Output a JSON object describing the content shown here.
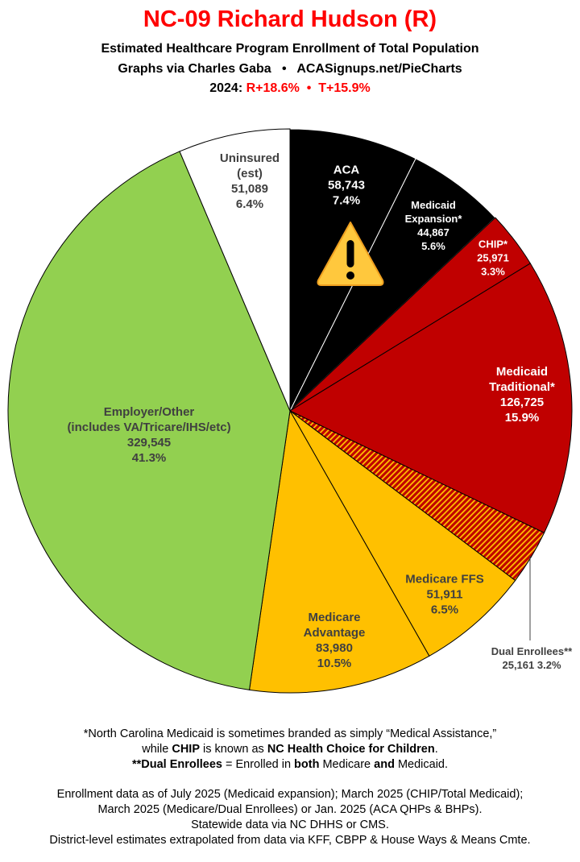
{
  "header": {
    "title": "NC-09 Richard Hudson (R)",
    "subtitle": "Estimated Healthcare Program Enrollment of Total Population",
    "credit": "Graphs via Charles Gaba   •   ACASignups.net/PieCharts",
    "margin_prefix": "2024: ",
    "margin_values": "R+18.6%  •  T+15.9%"
  },
  "chart_data": {
    "type": "pie",
    "start": "12 o'clock, clockwise",
    "slices": [
      {
        "name": "ACA",
        "lines": [
          "ACA"
        ],
        "value": 58743,
        "value_label": "58,743",
        "percent": 7.4,
        "percent_label": "7.4%",
        "color": "#000000",
        "text_color": "#ffffff"
      },
      {
        "name": "Medicaid Expansion*",
        "lines": [
          "Medicaid",
          "Expansion*"
        ],
        "value": 44867,
        "value_label": "44,867",
        "percent": 5.6,
        "percent_label": "5.6%",
        "color": "#000000",
        "text_color": "#ffffff"
      },
      {
        "name": "CHIP*",
        "lines": [
          "CHIP*"
        ],
        "value": 25971,
        "value_label": "25,971",
        "percent": 3.3,
        "percent_label": "3.3%",
        "color": "#c00000",
        "text_color": "#ffffff"
      },
      {
        "name": "Medicaid Traditional*",
        "lines": [
          "Medicaid",
          "Traditional*"
        ],
        "value": 126725,
        "value_label": "126,725",
        "percent": 15.9,
        "percent_label": "15.9%",
        "color": "#c00000",
        "text_color": "#ffffff"
      },
      {
        "name": "Dual Enrollees**",
        "lines": [
          "Dual Enrollees**"
        ],
        "value": 25161,
        "value_label": "25,161",
        "percent": 3.2,
        "percent_label": "3.2%",
        "color": "#c00000",
        "pattern": "hatched",
        "hatch_color": "#ffc000",
        "text_color": "#404040"
      },
      {
        "name": "Medicare FFS",
        "lines": [
          "Medicare FFS"
        ],
        "value": 51911,
        "value_label": "51,911",
        "percent": 6.5,
        "percent_label": "6.5%",
        "color": "#ffc000",
        "text_color": "#404040"
      },
      {
        "name": "Medicare Advantage",
        "lines": [
          "Medicare",
          "Advantage"
        ],
        "value": 83980,
        "value_label": "83,980",
        "percent": 10.5,
        "percent_label": "10.5%",
        "color": "#ffc000",
        "text_color": "#404040"
      },
      {
        "name": "Employer/Other",
        "lines": [
          "Employer/Other",
          "(includes VA/Tricare/IHS/etc)"
        ],
        "value": 329545,
        "value_label": "329,545",
        "percent": 41.3,
        "percent_label": "41.3%",
        "color": "#92d050",
        "text_color": "#404040"
      },
      {
        "name": "Uninsured (est)",
        "lines": [
          "Uninsured",
          "(est)"
        ],
        "value": 51089,
        "value_label": "51,089",
        "percent": 6.4,
        "percent_label": "6.4%",
        "color": "#ffffff",
        "text_color": "#404040"
      }
    ],
    "annotation_icon": "warning-triangle-icon"
  },
  "footnotes": {
    "line1": "*North Carolina Medicaid is sometimes branded as simply “Medical Assistance,”",
    "line2": [
      "while ",
      "CHIP",
      " is known as ",
      "NC Health Choice for Children",
      "."
    ],
    "line3": [
      "**Dual Enrollees",
      " = Enrolled in ",
      "both",
      " Medicare ",
      "and",
      " Medicaid."
    ]
  },
  "sources": [
    "Enrollment data as of July 2025 (Medicaid expansion); March 2025 (CHIP/Total Medicaid);",
    "March 2025 (Medicare/Dual Enrollees) or Jan. 2025 (ACA QHPs & BHPs).",
    "Statewide data via NC DHHS or CMS.",
    "District-level estimates extrapolated from data via KFF, CBPP & House Ways & Means Cmte."
  ]
}
